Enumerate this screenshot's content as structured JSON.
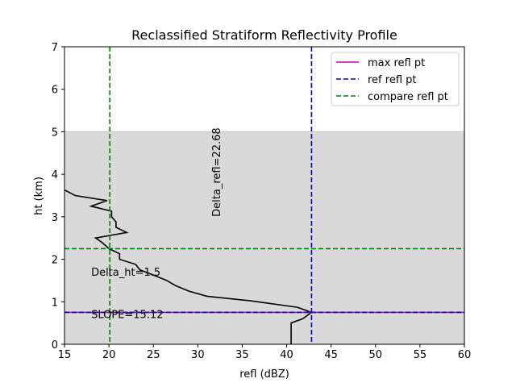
{
  "chart_data": {
    "type": "line",
    "title": "Reclassified Stratiform Reflectivity Profile",
    "xlabel": "refl (dBZ)",
    "ylabel": "ht (km)",
    "xlim": [
      15,
      60
    ],
    "ylim": [
      0,
      7
    ],
    "xticks": [
      15,
      20,
      25,
      30,
      35,
      40,
      45,
      50,
      55,
      60
    ],
    "yticks": [
      0,
      1,
      2,
      3,
      4,
      5,
      6,
      7
    ],
    "grid": false,
    "legend_position": "top-right",
    "shaded_band": {
      "y_from": 0,
      "y_to": 5,
      "color": "#d9d9d9"
    },
    "profile": {
      "color": "#000000",
      "points": [
        [
          40.5,
          0.0
        ],
        [
          40.5,
          0.5
        ],
        [
          41.8,
          0.6
        ],
        [
          42.8,
          0.75
        ],
        [
          41.2,
          0.87
        ],
        [
          36.0,
          1.02
        ],
        [
          31.0,
          1.13
        ],
        [
          29.0,
          1.25
        ],
        [
          27.5,
          1.38
        ],
        [
          26.5,
          1.5
        ],
        [
          25.0,
          1.63
        ],
        [
          23.5,
          1.75
        ],
        [
          23.0,
          1.88
        ],
        [
          21.2,
          2.0
        ],
        [
          21.2,
          2.13
        ],
        [
          20.0,
          2.25
        ],
        [
          19.2,
          2.4
        ],
        [
          18.5,
          2.5
        ],
        [
          22.0,
          2.63
        ],
        [
          20.8,
          2.75
        ],
        [
          20.8,
          2.88
        ],
        [
          20.3,
          3.0
        ],
        [
          20.3,
          3.13
        ],
        [
          18.0,
          3.25
        ],
        [
          19.8,
          3.38
        ],
        [
          16.2,
          3.5
        ],
        [
          15.0,
          3.63
        ]
      ]
    },
    "vertical_lines": [
      {
        "name": "ref refl pt",
        "x": 42.8,
        "color": "#0000cc"
      },
      {
        "name": "compare refl pt",
        "x": 20.1,
        "color": "#008000"
      }
    ],
    "horizontal_lines": [
      {
        "name": "max refl pt",
        "y": 0.75,
        "color": "#bf00bf"
      },
      {
        "name": "ref refl pt",
        "y": 0.75,
        "color": "#0000cc"
      },
      {
        "name": "compare refl pt",
        "y": 2.25,
        "color": "#008000"
      }
    ],
    "legend": [
      {
        "label": "max refl pt",
        "color": "#bf00bf",
        "style": "solid"
      },
      {
        "label": "ref refl pt",
        "color": "#0000cc",
        "style": "dashed"
      },
      {
        "label": "compare refl pt",
        "color": "#008000",
        "style": "dashed"
      }
    ],
    "annotations": [
      {
        "text": "Delta_refl=22.68",
        "x": 32.5,
        "y": 3.0,
        "rotation": 90
      },
      {
        "text": "Delta_ht=1.5",
        "x": 18.0,
        "y": 1.5,
        "rotation": 0
      },
      {
        "text": "SLOPE=15.12",
        "x": 18.0,
        "y": 0.5,
        "rotation": 0
      }
    ]
  }
}
